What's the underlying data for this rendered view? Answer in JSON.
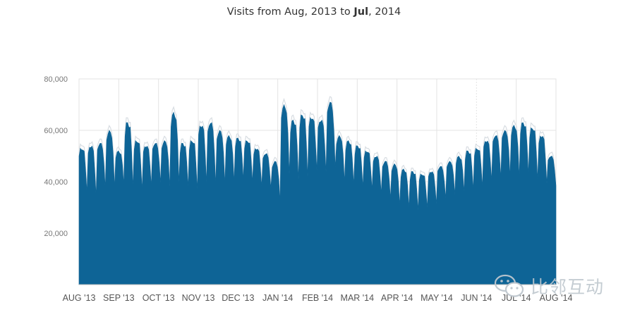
{
  "title": {
    "part1": "Visits from Aug, 2013 to ",
    "part2": "Jul",
    "part3": ", 2014"
  },
  "watermark": {
    "text": "比邻互动",
    "icon": "wechat-icon"
  },
  "colors": {
    "area": "#0e6496",
    "peak_line": "#d8dde2",
    "grid": "#e3e3e3",
    "axis_text": "#555555"
  },
  "chart_data": {
    "type": "area",
    "title": "Visits from Aug, 2013 to Jul, 2014",
    "xlabel": "",
    "ylabel": "",
    "ylim": [
      0,
      80000
    ],
    "yticks": [
      20000,
      40000,
      60000,
      80000
    ],
    "ytick_labels": [
      "20,000",
      "40,000",
      "60,000",
      "80,000"
    ],
    "xtick_labels": [
      "AUG '13",
      "SEP '13",
      "OCT '13",
      "NOV '13",
      "DEC '13",
      "JAN '14",
      "FEB '14",
      "MAR '14",
      "APR '14",
      "MAY '14",
      "JUN '14",
      "JUL '14",
      "AUG '14"
    ],
    "grid": true,
    "legend": "none",
    "series": [
      {
        "weekly_peaks": [
          53000,
          54000,
          55000,
          60000,
          52000,
          63000,
          56000,
          54000,
          55000,
          56000,
          67000,
          55000,
          56000,
          62000,
          63000,
          60000,
          58000,
          57000,
          56000,
          53000,
          51000,
          48000,
          70000,
          64000,
          66000,
          65000,
          64000,
          71000,
          58000,
          56000,
          54000,
          52000,
          50000,
          48000,
          47000,
          45000,
          44000,
          43000,
          44000,
          46000,
          48000,
          50000,
          52000,
          53000,
          56000,
          58000,
          60000,
          62000,
          63000,
          61000,
          58000,
          50000
        ],
        "weekly_lows": [
          36000,
          34000,
          37000,
          38000,
          39000,
          38000,
          37000,
          38000,
          39000,
          38000,
          40000,
          38000,
          37000,
          39000,
          38000,
          39000,
          40000,
          41000,
          40000,
          38000,
          37000,
          32000,
          43000,
          41000,
          42000,
          44000,
          43000,
          45000,
          40000,
          39000,
          38000,
          37000,
          35000,
          33000,
          31000,
          30000,
          29000,
          30000,
          31000,
          33000,
          35000,
          36000,
          37000,
          38000,
          40000,
          41000,
          42000,
          42000,
          43000,
          41000,
          39000,
          38000
        ],
        "visible_data_series": "daily visits, peaks ~70,000 (late Jan-Feb 2014), lows ~29,000 (May 2014)"
      }
    ]
  }
}
